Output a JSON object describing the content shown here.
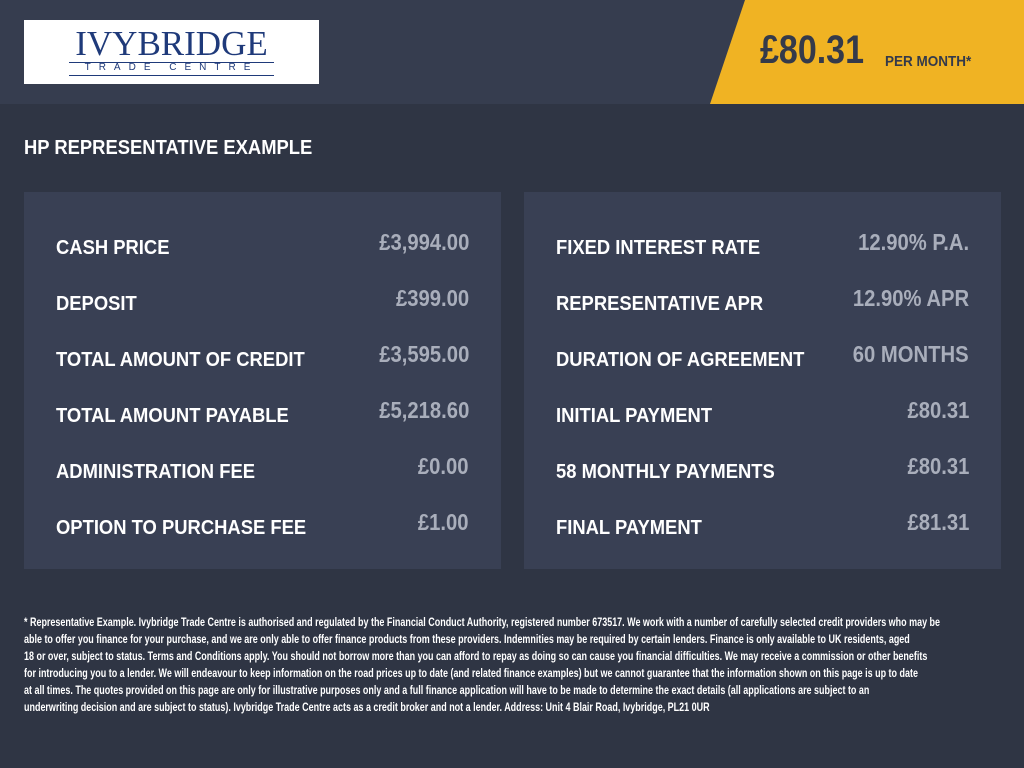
{
  "logo": {
    "name": "IVYBRIDGE",
    "subtitle": "TRADE CENTRE"
  },
  "price_banner": {
    "amount": "£80.31",
    "suffix": "PER MONTH*",
    "color": "#f0b323"
  },
  "section_title": "HP REPRESENTATIVE EXAMPLE",
  "left_panel": [
    {
      "label": "CASH PRICE",
      "value": "£3,994.00"
    },
    {
      "label": "DEPOSIT",
      "value": "£399.00"
    },
    {
      "label": "TOTAL AMOUNT OF CREDIT",
      "value": "£3,595.00"
    },
    {
      "label": "TOTAL AMOUNT PAYABLE",
      "value": "£5,218.60"
    },
    {
      "label": "ADMINISTRATION FEE",
      "value": "£0.00"
    },
    {
      "label": "OPTION TO PURCHASE FEE",
      "value": "£1.00"
    }
  ],
  "right_panel": [
    {
      "label": "FIXED INTEREST RATE",
      "value": "12.90% P.A."
    },
    {
      "label": "REPRESENTATIVE APR",
      "value": "12.90% APR"
    },
    {
      "label": "DURATION OF AGREEMENT",
      "value": "60 MONTHS"
    },
    {
      "label": "INITIAL PAYMENT",
      "value": "£80.31"
    },
    {
      "label": "58 MONTHLY PAYMENTS",
      "value": "£80.31"
    },
    {
      "label": "FINAL PAYMENT",
      "value": "£81.31"
    }
  ],
  "disclaimer_lines": [
    "* Representative Example. Ivybridge Trade Centre is authorised and regulated by the Financial Conduct Authority, registered number 673517. We work with a number of carefully selected credit providers who may be",
    "able to offer you finance for your purchase, and we are only able to offer finance products from these providers. Indemnities may be required by certain lenders. Finance is only available to UK residents, aged",
    "18 or over, subject to status. Terms and Conditions apply. You should not borrow more than you can afford to repay as doing so can cause you financial difficulties. We may receive a commission or other benefits",
    "for introducing you to a lender. We will endeavour to keep information on the road prices up to date (and related finance examples) but we cannot guarantee that the information shown on this page is up to date",
    "at all times. The quotes provided on this page are only for illustrative purposes only and a full finance application will have to be made to determine the exact details (all applications are subject to an",
    "underwriting decision and are subject to status). Ivybridge Trade Centre acts as a credit broker and not a lender. Address: Unit 4 Blair Road, Ivybridge, PL21 0UR"
  ]
}
